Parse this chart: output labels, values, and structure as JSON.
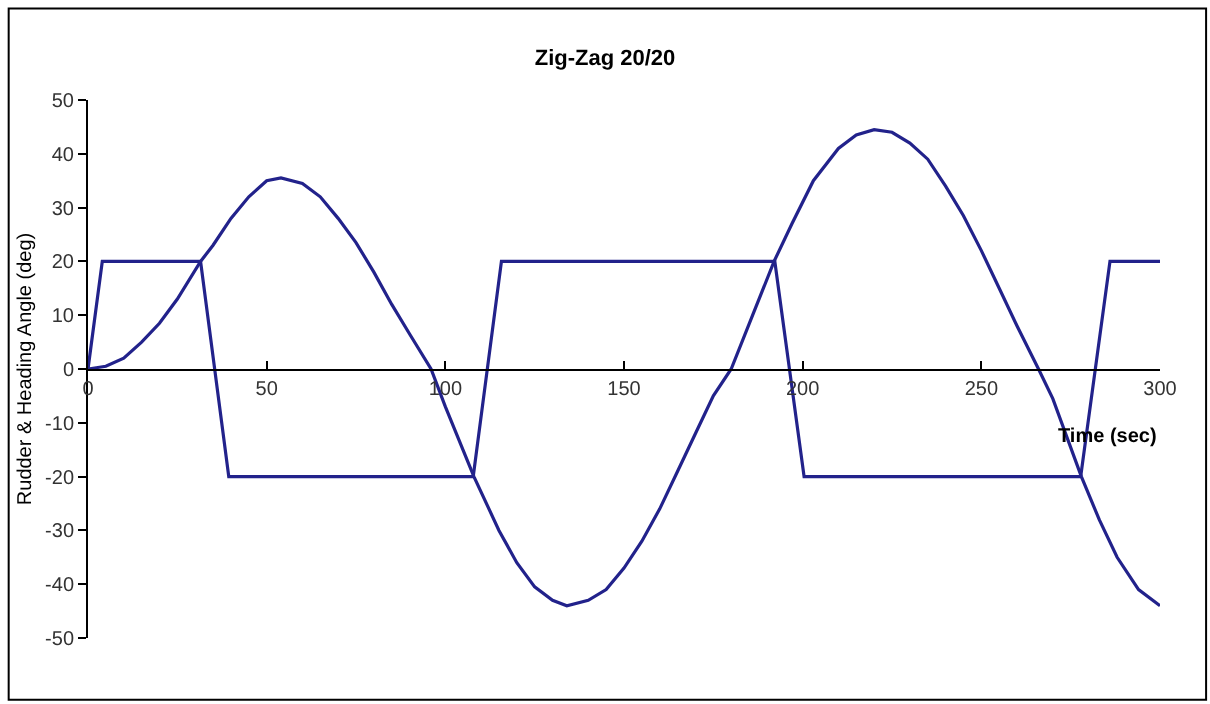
{
  "chart_data": {
    "type": "line",
    "title": "Zig-Zag 20/20",
    "xlabel": "Time (sec)",
    "ylabel": "Rudder & Heading Angle (deg)",
    "xlim": [
      0,
      300
    ],
    "xticks": [
      0,
      50,
      100,
      150,
      200,
      250,
      300
    ],
    "ylim": [
      -50,
      50
    ],
    "yticks": [
      -50,
      -40,
      -30,
      -20,
      -10,
      0,
      10,
      20,
      30,
      40,
      50
    ],
    "marker": "none",
    "line_style": "solid",
    "series": [
      {
        "color": "#22228b",
        "x": [
          0,
          4,
          31.5,
          39.4,
          107.8,
          115.7,
          192.2,
          200.4,
          277.8,
          286,
          300
        ],
        "values": [
          0,
          20,
          20,
          -20,
          -20,
          20,
          20,
          -20,
          -20,
          20,
          20
        ]
      },
      {
        "color": "#22228b",
        "x": [
          0,
          5,
          10,
          15,
          20,
          25,
          31.5,
          35,
          40,
          45,
          50,
          54,
          60,
          65,
          70,
          75,
          80,
          85,
          90,
          96,
          100,
          108,
          115,
          120,
          125,
          130,
          134,
          140,
          145,
          150,
          155,
          160,
          165,
          170,
          175,
          180,
          186,
          192,
          197,
          203,
          210,
          215,
          220,
          225,
          230,
          235,
          240,
          245,
          250,
          255,
          260,
          266,
          270,
          278,
          283,
          288,
          294,
          300
        ],
        "values": [
          0,
          0.5,
          2,
          5,
          8.5,
          13,
          20,
          23,
          28,
          32,
          35,
          35.5,
          34.5,
          32,
          28,
          23.5,
          18,
          12,
          6.5,
          0,
          -7,
          -20,
          -30,
          -36,
          -40.5,
          -43,
          -44,
          -43,
          -41,
          -37,
          -32,
          -26,
          -19,
          -12,
          -5,
          0,
          10,
          20,
          27,
          35,
          41,
          43.5,
          44.5,
          44,
          42,
          39,
          34,
          28.5,
          22,
          15,
          8,
          0,
          -5.5,
          -20,
          -28,
          -35,
          -41,
          -44
        ]
      }
    ]
  }
}
